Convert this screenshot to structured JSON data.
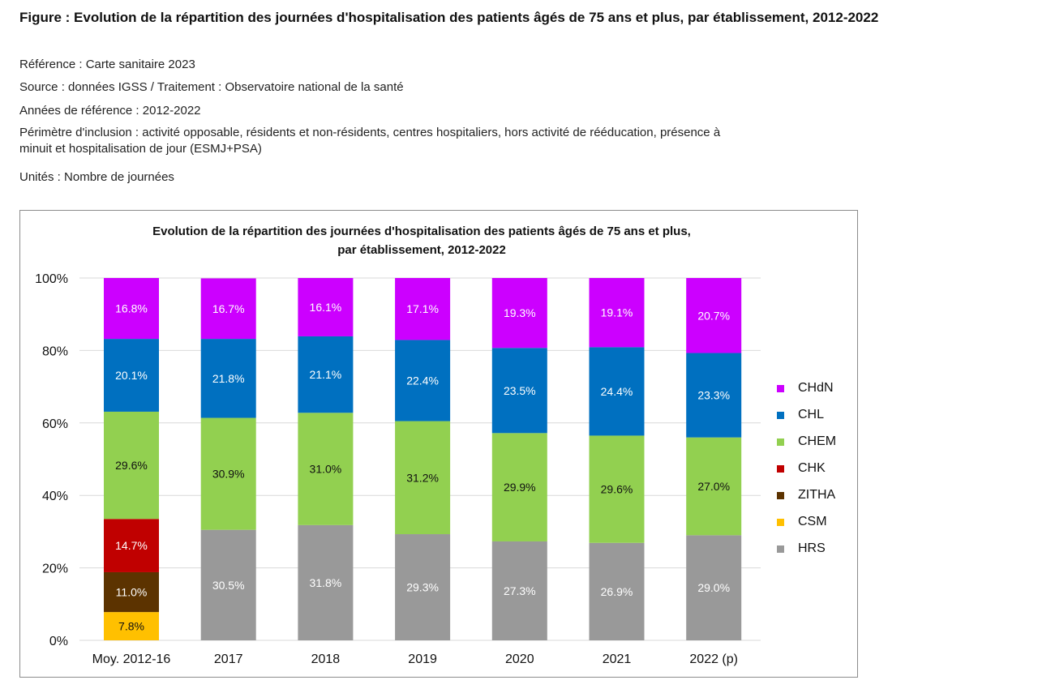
{
  "figure": {
    "title": "Figure : Evolution de la répartition des journées d'hospitalisation des patients âgés de 75 ans et plus, par établissement, 2012-2022",
    "reference": "Référence : Carte sanitaire 2023",
    "source": "Source : données IGSS / Traitement : Observatoire national de la santé",
    "years": "Années de référence : 2012-2022",
    "perimeter_line1": "Périmètre d'inclusion : activité opposable, résidents et non-résidents, centres hospitaliers, hors activité de rééducation, présence à",
    "perimeter_line2": "minuit et hospitalisation de jour (ESMJ+PSA)",
    "units": "Unités : Nombre de journées"
  },
  "chart_data": {
    "type": "bar",
    "stacked": "percent",
    "title_line1": "Evolution de la répartition des journées d'hospitalisation des patients âgés de 75 ans et plus,",
    "title_line2": "par établissement, 2012-2022",
    "categories": [
      "Moy. 2012-16",
      "2017",
      "2018",
      "2019",
      "2020",
      "2021",
      "2022 (p)"
    ],
    "ylim": [
      0,
      100
    ],
    "yticks": [
      0,
      20,
      40,
      60,
      80,
      100
    ],
    "ytick_labels": [
      "0%",
      "20%",
      "40%",
      "60%",
      "80%",
      "100%"
    ],
    "grid": true,
    "legend_position": "right",
    "series": [
      {
        "name": "HRS",
        "color": "#999999",
        "label_color": "#ffffff",
        "values": [
          0,
          30.5,
          31.8,
          29.3,
          27.3,
          26.9,
          29.0
        ],
        "labels": [
          "",
          "30.5%",
          "31.8%",
          "29.3%",
          "27.3%",
          "26.9%",
          "29.0%"
        ]
      },
      {
        "name": "CSM",
        "color": "#ffc000",
        "label_color": "#111111",
        "values": [
          7.8,
          0,
          0,
          0,
          0,
          0,
          0
        ],
        "labels": [
          "7.8%",
          "",
          "",
          "",
          "",
          "",
          ""
        ]
      },
      {
        "name": "ZITHA",
        "color": "#5c3300",
        "label_color": "#ffffff",
        "values": [
          11.0,
          0,
          0,
          0,
          0,
          0,
          0
        ],
        "labels": [
          "11.0%",
          "",
          "",
          "",
          "",
          "",
          ""
        ]
      },
      {
        "name": "CHK",
        "color": "#c00000",
        "label_color": "#ffffff",
        "values": [
          14.7,
          0,
          0,
          0,
          0,
          0,
          0
        ],
        "labels": [
          "14.7%",
          "",
          "",
          "",
          "",
          "",
          ""
        ]
      },
      {
        "name": "CHEM",
        "color": "#92d050",
        "label_color": "#111111",
        "values": [
          29.6,
          30.9,
          31.0,
          31.2,
          29.9,
          29.6,
          27.0
        ],
        "labels": [
          "29.6%",
          "30.9%",
          "31.0%",
          "31.2%",
          "29.9%",
          "29.6%",
          "27.0%"
        ]
      },
      {
        "name": "CHL",
        "color": "#0070c0",
        "label_color": "#ffffff",
        "values": [
          20.1,
          21.8,
          21.1,
          22.4,
          23.5,
          24.4,
          23.3
        ],
        "labels": [
          "20.1%",
          "21.8%",
          "21.1%",
          "22.4%",
          "23.5%",
          "24.4%",
          "23.3%"
        ]
      },
      {
        "name": "CHdN",
        "color": "#cc00ff",
        "label_color": "#ffffff",
        "values": [
          16.8,
          16.7,
          16.1,
          17.1,
          19.3,
          19.1,
          20.7
        ],
        "labels": [
          "16.8%",
          "16.7%",
          "16.1%",
          "17.1%",
          "19.3%",
          "19.1%",
          "20.7%"
        ]
      }
    ],
    "legend_order": [
      "CHdN",
      "CHL",
      "CHEM",
      "CHK",
      "ZITHA",
      "CSM",
      "HRS"
    ]
  }
}
